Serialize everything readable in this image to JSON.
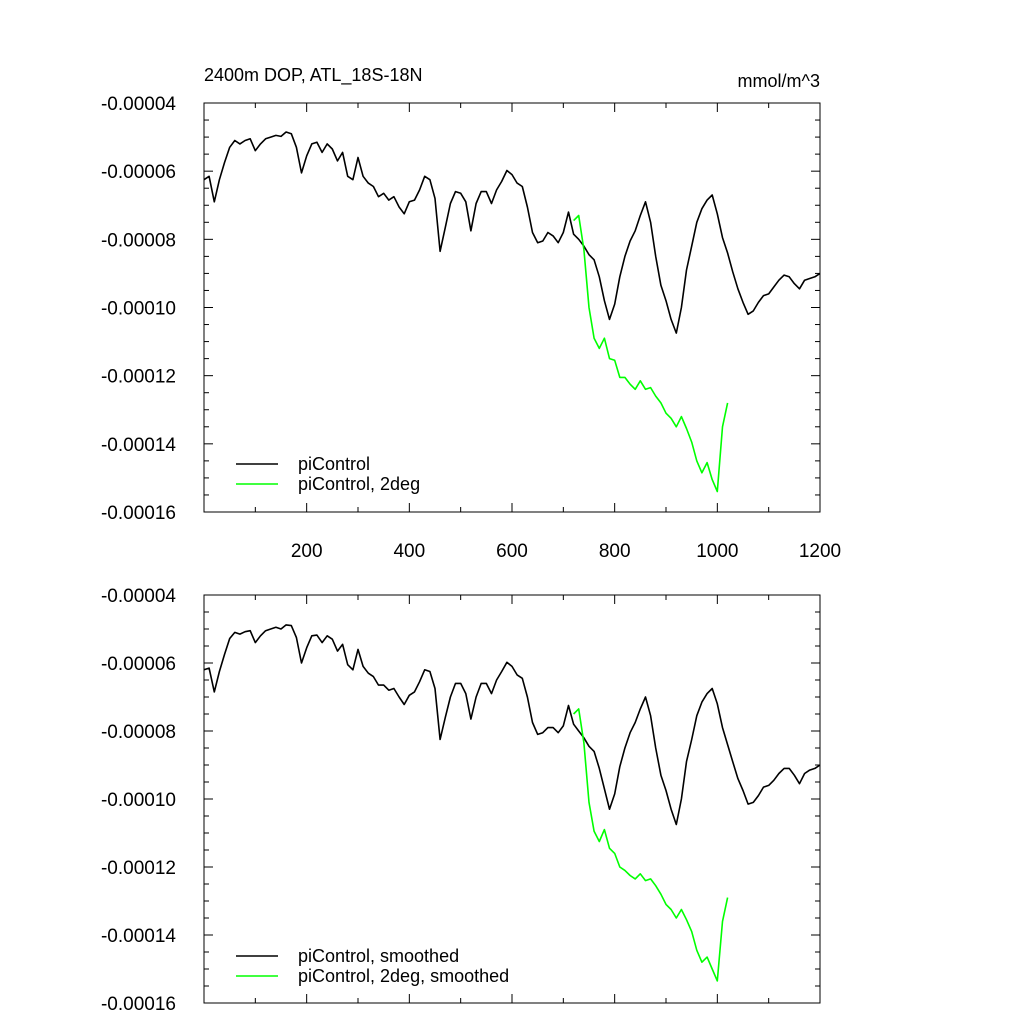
{
  "chart_data": [
    {
      "type": "line",
      "title": "2400m DOP, ATL_18S-18N",
      "units": "mmol/m^3",
      "xlabel": "",
      "ylabel": "",
      "xlim": [
        0,
        1200
      ],
      "ylim": [
        -0.00016,
        -4e-05
      ],
      "x_ticks": [
        200,
        400,
        600,
        800,
        1000,
        1200
      ],
      "x_tick_labels": [
        "200",
        "400",
        "600",
        "800",
        "1000",
        "1200"
      ],
      "y_ticks": [
        -4e-05,
        -6e-05,
        -8e-05,
        -0.0001,
        -0.00012,
        -0.00014,
        -0.00016
      ],
      "y_tick_labels": [
        "-0.00004",
        "-0.00006",
        "-0.00008",
        "-0.00010",
        "-0.00012",
        "-0.00014",
        "-0.00016"
      ],
      "grid": false,
      "legend_position": "bottom-left",
      "series": [
        {
          "name": "piControl",
          "color": "#000000",
          "x": [
            0,
            10,
            20,
            30,
            40,
            50,
            60,
            70,
            80,
            90,
            100,
            110,
            120,
            130,
            140,
            150,
            160,
            170,
            180,
            190,
            200,
            210,
            220,
            230,
            240,
            250,
            260,
            270,
            280,
            290,
            300,
            310,
            320,
            330,
            340,
            350,
            360,
            370,
            380,
            390,
            400,
            410,
            420,
            430,
            440,
            450,
            460,
            470,
            480,
            490,
            500,
            510,
            520,
            530,
            540,
            550,
            560,
            570,
            580,
            590,
            600,
            610,
            620,
            630,
            640,
            650,
            660,
            670,
            680,
            690,
            700,
            710,
            720,
            730,
            740,
            750,
            760,
            770,
            780,
            790,
            800,
            810,
            820,
            830,
            840,
            850,
            860,
            870,
            880,
            890,
            900,
            910,
            920,
            930,
            940,
            950,
            960,
            970,
            980,
            990,
            1000,
            1010,
            1020,
            1030,
            1040,
            1050,
            1060,
            1070,
            1080,
            1090,
            1100,
            1110,
            1120,
            1130,
            1140,
            1150,
            1160,
            1170,
            1180,
            1190,
            1200
          ],
          "values": [
            -6.25e-05,
            -6.15e-05,
            -6.9e-05,
            -6.25e-05,
            -5.75e-05,
            -5.3e-05,
            -5.1e-05,
            -5.2e-05,
            -5.1e-05,
            -5.05e-05,
            -5.4e-05,
            -5.2e-05,
            -5.05e-05,
            -5e-05,
            -4.95e-05,
            -4.98e-05,
            -4.85e-05,
            -4.9e-05,
            -5.3e-05,
            -6.05e-05,
            -5.55e-05,
            -5.2e-05,
            -5.15e-05,
            -5.45e-05,
            -5.2e-05,
            -5.35e-05,
            -5.7e-05,
            -5.45e-05,
            -6.15e-05,
            -6.25e-05,
            -5.6e-05,
            -6.15e-05,
            -6.35e-05,
            -6.45e-05,
            -6.75e-05,
            -6.65e-05,
            -6.85e-05,
            -6.75e-05,
            -7.05e-05,
            -7.25e-05,
            -6.9e-05,
            -6.85e-05,
            -6.55e-05,
            -6.15e-05,
            -6.25e-05,
            -6.8e-05,
            -8.35e-05,
            -7.65e-05,
            -6.95e-05,
            -6.6e-05,
            -6.65e-05,
            -6.9e-05,
            -7.75e-05,
            -6.95e-05,
            -6.6e-05,
            -6.6e-05,
            -6.95e-05,
            -6.55e-05,
            -6.3e-05,
            -5.98e-05,
            -6.1e-05,
            -6.35e-05,
            -6.45e-05,
            -7.05e-05,
            -7.8e-05,
            -8.1e-05,
            -8.05e-05,
            -7.8e-05,
            -7.9e-05,
            -8.1e-05,
            -7.8e-05,
            -7.2e-05,
            -7.85e-05,
            -8e-05,
            -8.2e-05,
            -8.45e-05,
            -8.6e-05,
            -9.1e-05,
            -9.8e-05,
            -0.0001035,
            -9.9e-05,
            -9.1e-05,
            -8.5e-05,
            -8.05e-05,
            -7.75e-05,
            -7.3e-05,
            -6.9e-05,
            -7.5e-05,
            -8.5e-05,
            -9.35e-05,
            -9.8e-05,
            -0.0001035,
            -0.0001075,
            -0.0001,
            -8.9e-05,
            -8.2e-05,
            -7.5e-05,
            -7.1e-05,
            -6.85e-05,
            -6.7e-05,
            -7.25e-05,
            -7.95e-05,
            -8.4e-05,
            -8.95e-05,
            -9.45e-05,
            -9.85e-05,
            -0.000102,
            -0.000101,
            -9.85e-05,
            -9.65e-05,
            -9.6e-05,
            -9.4e-05,
            -9.2e-05,
            -9.05e-05,
            -9.1e-05,
            -9.3e-05,
            -9.45e-05,
            -9.2e-05,
            -9.15e-05,
            -9.1e-05,
            -9e-05
          ]
        },
        {
          "name": "piControl, 2deg",
          "color": "#00ff00",
          "x": [
            720,
            730,
            740,
            750,
            760,
            770,
            780,
            790,
            800,
            810,
            820,
            830,
            840,
            850,
            860,
            870,
            880,
            890,
            900,
            910,
            920,
            930,
            940,
            950,
            960,
            970,
            980,
            990,
            1000,
            1010,
            1020
          ],
          "values": [
            -7.45e-05,
            -7.3e-05,
            -8.3e-05,
            -0.0001,
            -0.000109,
            -0.000112,
            -0.000109,
            -0.000115,
            -0.0001155,
            -0.0001205,
            -0.0001205,
            -0.0001225,
            -0.000124,
            -0.0001215,
            -0.000124,
            -0.0001235,
            -0.000126,
            -0.000128,
            -0.000131,
            -0.0001325,
            -0.000135,
            -0.000132,
            -0.0001355,
            -0.0001395,
            -0.000145,
            -0.0001485,
            -0.0001455,
            -0.0001505,
            -0.000154,
            -0.000135,
            -0.000128
          ]
        }
      ]
    },
    {
      "type": "line",
      "title": "",
      "xlabel": "",
      "ylabel": "",
      "xlim": [
        0,
        1200
      ],
      "ylim": [
        -0.00016,
        -4e-05
      ],
      "y_ticks": [
        -4e-05,
        -6e-05,
        -8e-05,
        -0.0001,
        -0.00012,
        -0.00014,
        -0.00016
      ],
      "y_tick_labels": [
        "-0.00004",
        "-0.00006",
        "-0.00008",
        "-0.00010",
        "-0.00012",
        "-0.00014",
        "-0.00016"
      ],
      "grid": false,
      "legend_position": "bottom-left",
      "series": [
        {
          "name": "piControl, smoothed",
          "color": "#000000",
          "x": [
            0,
            10,
            20,
            30,
            40,
            50,
            60,
            70,
            80,
            90,
            100,
            110,
            120,
            130,
            140,
            150,
            160,
            170,
            180,
            190,
            200,
            210,
            220,
            230,
            240,
            250,
            260,
            270,
            280,
            290,
            300,
            310,
            320,
            330,
            340,
            350,
            360,
            370,
            380,
            390,
            400,
            410,
            420,
            430,
            440,
            450,
            460,
            470,
            480,
            490,
            500,
            510,
            520,
            530,
            540,
            550,
            560,
            570,
            580,
            590,
            600,
            610,
            620,
            630,
            640,
            650,
            660,
            670,
            680,
            690,
            700,
            710,
            720,
            730,
            740,
            750,
            760,
            770,
            780,
            790,
            800,
            810,
            820,
            830,
            840,
            850,
            860,
            870,
            880,
            890,
            900,
            910,
            920,
            930,
            940,
            950,
            960,
            970,
            980,
            990,
            1000,
            1010,
            1020,
            1030,
            1040,
            1050,
            1060,
            1070,
            1080,
            1090,
            1100,
            1110,
            1120,
            1130,
            1140,
            1150,
            1160,
            1170,
            1180,
            1190,
            1200
          ],
          "values": [
            -6.2e-05,
            -6.15e-05,
            -6.85e-05,
            -6.25e-05,
            -5.75e-05,
            -5.28e-05,
            -5.1e-05,
            -5.15e-05,
            -5.08e-05,
            -5.05e-05,
            -5.4e-05,
            -5.2e-05,
            -5.05e-05,
            -5e-05,
            -4.95e-05,
            -5e-05,
            -4.88e-05,
            -4.9e-05,
            -5.25e-05,
            -6e-05,
            -5.55e-05,
            -5.2e-05,
            -5.18e-05,
            -5.4e-05,
            -5.2e-05,
            -5.3e-05,
            -5.65e-05,
            -5.45e-05,
            -6.05e-05,
            -6.2e-05,
            -5.6e-05,
            -6.1e-05,
            -6.3e-05,
            -6.4e-05,
            -6.65e-05,
            -6.65e-05,
            -6.8e-05,
            -6.75e-05,
            -7e-05,
            -7.22e-05,
            -6.95e-05,
            -6.85e-05,
            -6.55e-05,
            -6.2e-05,
            -6.25e-05,
            -6.75e-05,
            -8.25e-05,
            -7.6e-05,
            -7e-05,
            -6.6e-05,
            -6.6e-05,
            -6.9e-05,
            -7.65e-05,
            -7e-05,
            -6.6e-05,
            -6.6e-05,
            -6.9e-05,
            -6.5e-05,
            -6.25e-05,
            -5.98e-05,
            -6.1e-05,
            -6.35e-05,
            -6.45e-05,
            -7e-05,
            -7.75e-05,
            -8.1e-05,
            -8.05e-05,
            -7.9e-05,
            -7.9e-05,
            -8.05e-05,
            -7.85e-05,
            -7.25e-05,
            -7.8e-05,
            -8e-05,
            -8.2e-05,
            -8.45e-05,
            -8.6e-05,
            -9.1e-05,
            -9.7e-05,
            -0.000103,
            -9.85e-05,
            -9.05e-05,
            -8.5e-05,
            -8.05e-05,
            -7.75e-05,
            -7.35e-05,
            -7e-05,
            -7.55e-05,
            -8.5e-05,
            -9.3e-05,
            -9.75e-05,
            -0.000103,
            -0.0001075,
            -0.0001,
            -8.9e-05,
            -8.25e-05,
            -7.55e-05,
            -7.15e-05,
            -6.9e-05,
            -6.75e-05,
            -7.2e-05,
            -7.9e-05,
            -8.4e-05,
            -8.9e-05,
            -9.4e-05,
            -9.75e-05,
            -0.0001015,
            -0.000101,
            -9.9e-05,
            -9.65e-05,
            -9.6e-05,
            -9.45e-05,
            -9.25e-05,
            -9.1e-05,
            -9.1e-05,
            -9.3e-05,
            -9.55e-05,
            -9.25e-05,
            -9.15e-05,
            -9.1e-05,
            -9e-05
          ]
        },
        {
          "name": "piControl, 2deg, smoothed",
          "color": "#00ff00",
          "x": [
            720,
            730,
            740,
            750,
            760,
            770,
            780,
            790,
            800,
            810,
            820,
            830,
            840,
            850,
            860,
            870,
            880,
            890,
            900,
            910,
            920,
            930,
            940,
            950,
            960,
            970,
            980,
            990,
            1000,
            1010,
            1020
          ],
          "values": [
            -7.5e-05,
            -7.35e-05,
            -8.35e-05,
            -0.000101,
            -0.0001095,
            -0.0001125,
            -0.000109,
            -0.0001145,
            -0.000116,
            -0.00012,
            -0.000121,
            -0.0001225,
            -0.0001235,
            -0.000122,
            -0.000124,
            -0.0001235,
            -0.0001255,
            -0.000128,
            -0.000131,
            -0.0001325,
            -0.000135,
            -0.0001325,
            -0.0001355,
            -0.000139,
            -0.0001445,
            -0.000148,
            -0.0001465,
            -0.00015,
            -0.0001535,
            -0.000136,
            -0.000129
          ]
        }
      ]
    }
  ]
}
